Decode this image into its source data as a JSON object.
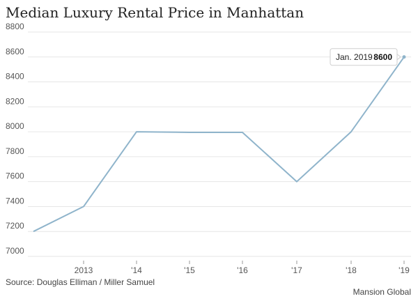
{
  "chart_data": {
    "type": "line",
    "title": "Median Luxury Rental Price in Manhattan",
    "x": [
      "2012",
      "2013",
      "2014",
      "2015",
      "2016",
      "2017",
      "2018",
      "2019"
    ],
    "x_tick_labels": [
      "2013",
      "'14",
      "'15",
      "'16",
      "'17",
      "'18",
      "'19"
    ],
    "series": [
      {
        "values": [
          7200,
          7400,
          8000,
          7995,
          7995,
          7600,
          8000,
          8600
        ]
      }
    ],
    "y_ticks": [
      7000,
      7200,
      7400,
      7600,
      7800,
      8000,
      8200,
      8400,
      8600,
      8800
    ],
    "ylim": [
      7000,
      8800
    ],
    "grid": true,
    "tooltip": {
      "date_label": "Jan. 2019",
      "value_label": "8600"
    },
    "color": "#8fb4cb"
  },
  "footer": {
    "source": "Source: Douglas Elliman / Miller Samuel",
    "brand": "Mansion Global"
  }
}
